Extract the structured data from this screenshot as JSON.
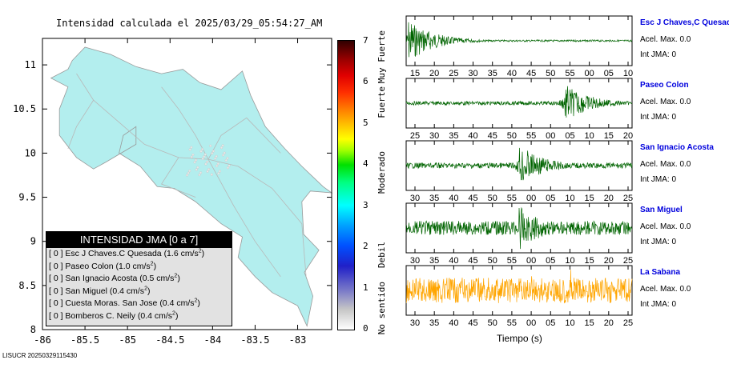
{
  "title": "Intensidad calculada el 2025/03/29_05:54:27_AM",
  "footer_id": "LISUCR 20250329115430",
  "chart_data": [
    {
      "type": "map",
      "lat_ticks": [
        "11",
        "10.5",
        "10",
        "9.5",
        "9",
        "8.5",
        "8"
      ],
      "lon_ticks": [
        "-86",
        "-85.5",
        "-85",
        "-84.5",
        "-84",
        "-83.5",
        "-83"
      ],
      "lat_range": [
        8,
        11.3
      ],
      "lon_range": [
        -86,
        -82.6
      ],
      "land_color": "#b3eeee",
      "legend": {
        "title": "INTENSIDAD JMA [0 a 7]",
        "entries": [
          {
            "value": "[ 0 ]",
            "station": "Esc J Chaves.C Quesada",
            "acc": "(1.6 cm/s",
            "unit_sup": "2",
            "close": ")"
          },
          {
            "value": "[ 0 ]",
            "station": "Paseo Colon",
            "acc": "(1.0 cm/s",
            "unit_sup": "2",
            "close": ")"
          },
          {
            "value": "[ 0 ]",
            "station": "San Ignacio Acosta",
            "acc": "(0.5 cm/s",
            "unit_sup": "2",
            "close": ")"
          },
          {
            "value": "[ 0 ]",
            "station": "San Miguel",
            "acc": "(0.4 cm/s",
            "unit_sup": "2",
            "close": ")"
          },
          {
            "value": "[ 0 ]",
            "station": "Cuesta Moras. San Jose",
            "acc": "(0.4 cm/s",
            "unit_sup": "2",
            "close": ")"
          },
          {
            "value": "[ 0 ]",
            "station": "Bomberos C. Neily",
            "acc": "(0.4 cm/s",
            "unit_sup": "2",
            "close": ")"
          }
        ]
      }
    },
    {
      "type": "colorbar",
      "ticks": [
        "0",
        "1",
        "2",
        "3",
        "4",
        "5",
        "6",
        "7"
      ],
      "range": [
        0,
        7
      ],
      "categories": [
        {
          "label": "No sentido",
          "center": 0.5
        },
        {
          "label": "Debil",
          "center": 1.8
        },
        {
          "label": "Moderado",
          "center": 3.8
        },
        {
          "label": "Fuerte",
          "center": 5.5
        },
        {
          "label": "Muy Fuerte",
          "center": 6.6
        }
      ]
    },
    {
      "type": "line",
      "xlabel": "Tiempo (s)",
      "series": [
        {
          "name": "Esc J Chaves,C Quesada",
          "acel": "Acel. Max. 0.0",
          "jma": "Int JMA: 0",
          "color": "#006400",
          "x_ticks": [
            "15",
            "20",
            "25",
            "30",
            "35",
            "40",
            "45",
            "50",
            "55",
            "00",
            "05",
            "10"
          ],
          "onset": 0.01,
          "amp_peak": 0.95,
          "noise": 0.04
        },
        {
          "name": "Paseo Colon",
          "acel": "Acel. Max. 0.0",
          "jma": "Int JMA: 0",
          "color": "#006400",
          "x_ticks": [
            "25",
            "30",
            "35",
            "40",
            "45",
            "50",
            "55",
            "00",
            "05",
            "10",
            "15",
            "20"
          ],
          "onset": 0.7,
          "amp_peak": 0.85,
          "noise": 0.08
        },
        {
          "name": "San Ignacio Acosta",
          "acel": "Acel. Max. 0.0",
          "jma": "Int JMA: 0",
          "color": "#006400",
          "x_ticks": [
            "30",
            "35",
            "40",
            "45",
            "50",
            "55",
            "00",
            "05",
            "10",
            "15",
            "20",
            "25"
          ],
          "onset": 0.5,
          "amp_peak": 0.9,
          "noise": 0.12
        },
        {
          "name": "San Miguel",
          "acel": "Acel. Max. 0.0",
          "jma": "Int JMA: 0",
          "color": "#006400",
          "x_ticks": [
            "30",
            "35",
            "40",
            "45",
            "50",
            "55",
            "00",
            "05",
            "10",
            "15",
            "20",
            "25"
          ],
          "onset": 0.5,
          "amp_peak": 0.95,
          "noise": 0.3
        },
        {
          "name": "La Sabana",
          "acel": "Acel. Max. 0.0",
          "jma": "Int JMA: 0",
          "color": "#ffa500",
          "x_ticks": [
            "30",
            "35",
            "40",
            "45",
            "50",
            "55",
            "00",
            "05",
            "10",
            "15",
            "20",
            "25"
          ],
          "onset": 0.0,
          "amp_peak": 0.6,
          "noise": 0.55
        }
      ]
    }
  ]
}
